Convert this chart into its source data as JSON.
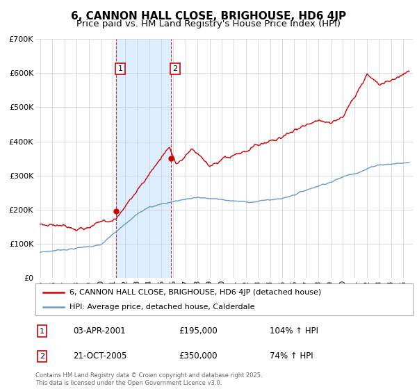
{
  "title": "6, CANNON HALL CLOSE, BRIGHOUSE, HD6 4JP",
  "subtitle": "Price paid vs. HM Land Registry's House Price Index (HPI)",
  "ylim": [
    0,
    700000
  ],
  "yticks": [
    0,
    100000,
    200000,
    300000,
    400000,
    500000,
    600000,
    700000
  ],
  "ytick_labels": [
    "£0",
    "£100K",
    "£200K",
    "£300K",
    "£400K",
    "£500K",
    "£600K",
    "£700K"
  ],
  "xlim_start": 1994.6,
  "xlim_end": 2025.8,
  "sale1_x": 2001.25,
  "sale1_y": 195000,
  "sale1_label": "1",
  "sale1_date": "03-APR-2001",
  "sale1_price": "£195,000",
  "sale1_hpi": "104% ↑ HPI",
  "sale2_x": 2005.8,
  "sale2_y": 350000,
  "sale2_label": "2",
  "sale2_date": "21-OCT-2005",
  "sale2_price": "£350,000",
  "sale2_hpi": "74% ↑ HPI",
  "property_color": "#cc0000",
  "hpi_color": "#6699cc",
  "shade_color": "#ddeeff",
  "legend_label_property": "6, CANNON HALL CLOSE, BRIGHOUSE, HD6 4JP (detached house)",
  "legend_label_hpi": "HPI: Average price, detached house, Calderdale",
  "footer": "Contains HM Land Registry data © Crown copyright and database right 2025.\nThis data is licensed under the Open Government Licence v3.0.",
  "title_fontsize": 11,
  "subtitle_fontsize": 9.5,
  "background_color": "#ffffff",
  "grid_color": "#cccccc"
}
